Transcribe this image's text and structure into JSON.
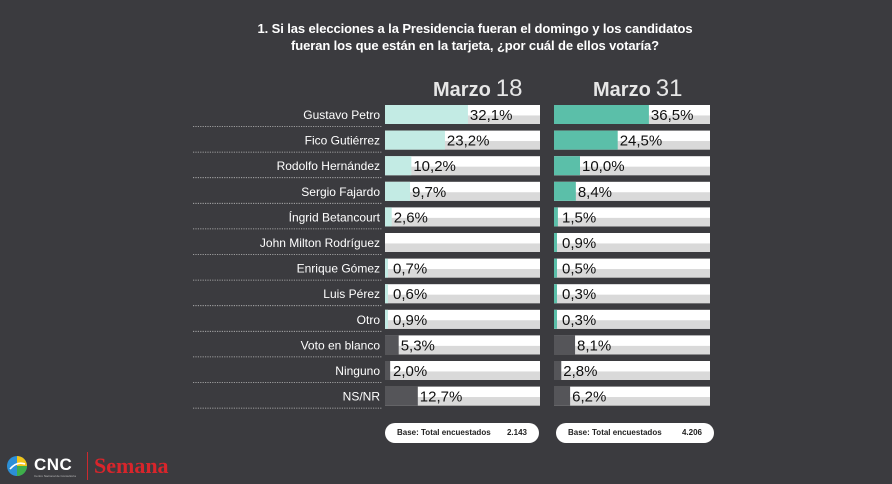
{
  "question": {
    "line1": "1. Si las elecciones a la Presidencia fueran el domingo y los candidatos",
    "line2": "fueran los que están en la tarjeta, ¿por cuál de ellos votaría?"
  },
  "columns": [
    {
      "month": "Marzo",
      "day": "18"
    },
    {
      "month": "Marzo",
      "day": "31"
    }
  ],
  "base": [
    {
      "label": "Base: Total encuestados",
      "value": "2.143"
    },
    {
      "label": "Base: Total encuestados",
      "value": "4.206"
    }
  ],
  "colors": {
    "background": "#3b3b3f",
    "bar_track": "#ffffff",
    "bar_track_shade": "#d9d9d9",
    "march18_candidates": "#c3ebe4",
    "march31_candidates": "#5bbfa9",
    "other_options": "#555559"
  },
  "logos": {
    "cnc": "CNC",
    "cnc_sub": "Centro Nacional de Consultoría",
    "semana": "Semana"
  },
  "chart_data": {
    "type": "bar",
    "orientation": "horizontal",
    "title": "1. Si las elecciones a la Presidencia fueran el domingo y los candidatos fueran los que están en la tarjeta, ¿por cuál de ellos votaría?",
    "unit": "%",
    "xlim": [
      0,
      100
    ],
    "categories": [
      "Gustavo Petro",
      "Fico Gutiérrez",
      "Rodolfo Hernández",
      "Sergio Fajardo",
      "Íngrid Betancourt",
      "John Milton Rodríguez",
      "Enrique Gómez",
      "Luis Pérez",
      "Otro",
      "Voto en blanco",
      "Ninguno",
      "NS/NR"
    ],
    "series": [
      {
        "name": "Marzo 18",
        "values": [
          32.1,
          23.2,
          10.2,
          9.7,
          2.6,
          null,
          0.7,
          0.6,
          0.9,
          5.3,
          2.0,
          12.7
        ],
        "labels": [
          "32,1%",
          "23,2%",
          "10,2%",
          "9,7%",
          "2,6%",
          "",
          "0,7%",
          "0,6%",
          "0,9%",
          "5,3%",
          "2,0%",
          "12,7%"
        ]
      },
      {
        "name": "Marzo 31",
        "values": [
          36.5,
          24.5,
          10.0,
          8.4,
          1.5,
          0.9,
          0.5,
          0.3,
          0.3,
          8.1,
          2.8,
          6.2
        ],
        "labels": [
          "36,5%",
          "24,5%",
          "10,0%",
          "8,4%",
          "1,5%",
          "0,9%",
          "0,5%",
          "0,3%",
          "0,3%",
          "8,1%",
          "2,8%",
          "6,2%"
        ]
      }
    ]
  }
}
